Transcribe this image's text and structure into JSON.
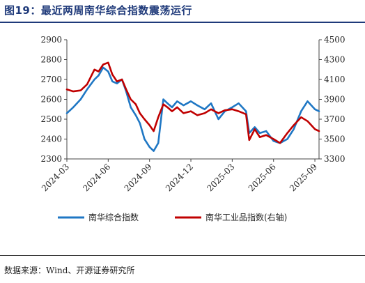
{
  "title": "图19：最近两周南华综合指数震荡运行",
  "source": "数据来源：Wind、开源证券研究所",
  "colors": {
    "left_series": "#1f77c4",
    "right_series": "#c00000",
    "title": "#1f3a7a"
  },
  "chart_data": {
    "type": "line",
    "title": "图19：最近两周南华综合指数震荡运行",
    "xlabel": "",
    "ylabel": "",
    "x_ticks": [
      "2024-03",
      "2024-06",
      "2024-09",
      "2024-12",
      "2025-03",
      "2025-06",
      "2025-09"
    ],
    "x_range": [
      "2024-03",
      "2025-09"
    ],
    "y_left": {
      "range": [
        2300,
        2900
      ],
      "ticks": [
        2300,
        2400,
        2500,
        2600,
        2700,
        2800,
        2900
      ]
    },
    "y_right": {
      "range": [
        3300,
        4500
      ],
      "ticks": [
        3300,
        3500,
        3700,
        3900,
        4100,
        4300,
        4500
      ]
    },
    "grid": false,
    "legend": "bottom",
    "series": [
      {
        "name": "南华综合指数",
        "axis": "left",
        "color": "#1f77c4",
        "x": [
          "2024-03-01",
          "2024-03-15",
          "2024-04-01",
          "2024-04-15",
          "2024-05-01",
          "2024-05-10",
          "2024-05-20",
          "2024-06-01",
          "2024-06-10",
          "2024-06-20",
          "2024-07-01",
          "2024-07-10",
          "2024-07-20",
          "2024-08-01",
          "2024-08-10",
          "2024-08-20",
          "2024-09-01",
          "2024-09-10",
          "2024-09-20",
          "2024-10-01",
          "2024-10-10",
          "2024-10-20",
          "2024-11-01",
          "2024-11-15",
          "2024-12-01",
          "2024-12-15",
          "2025-01-01",
          "2025-01-15",
          "2025-02-01",
          "2025-02-15",
          "2025-03-01",
          "2025-03-15",
          "2025-04-01",
          "2025-04-08",
          "2025-04-20",
          "2025-05-01",
          "2025-05-15",
          "2025-06-01",
          "2025-06-15",
          "2025-07-01",
          "2025-07-15",
          "2025-08-01",
          "2025-08-15",
          "2025-09-01",
          "2025-09-10"
        ],
        "y": [
          2530,
          2560,
          2600,
          2650,
          2700,
          2720,
          2760,
          2740,
          2690,
          2680,
          2700,
          2640,
          2560,
          2520,
          2480,
          2400,
          2360,
          2340,
          2380,
          2600,
          2580,
          2560,
          2590,
          2570,
          2590,
          2570,
          2550,
          2580,
          2500,
          2540,
          2560,
          2580,
          2540,
          2430,
          2460,
          2430,
          2440,
          2390,
          2380,
          2400,
          2450,
          2540,
          2590,
          2550,
          2540
        ]
      },
      {
        "name": "南华工业品指数(右轴)",
        "axis": "right",
        "color": "#c00000",
        "x": [
          "2024-03-01",
          "2024-03-15",
          "2024-04-01",
          "2024-04-15",
          "2024-05-01",
          "2024-05-10",
          "2024-05-20",
          "2024-06-01",
          "2024-06-10",
          "2024-06-20",
          "2024-07-01",
          "2024-07-10",
          "2024-07-20",
          "2024-08-01",
          "2024-08-10",
          "2024-08-20",
          "2024-09-01",
          "2024-09-10",
          "2024-09-20",
          "2024-10-01",
          "2024-10-10",
          "2024-10-20",
          "2024-11-01",
          "2024-11-15",
          "2024-12-01",
          "2024-12-15",
          "2025-01-01",
          "2025-01-15",
          "2025-02-01",
          "2025-02-15",
          "2025-03-01",
          "2025-03-15",
          "2025-04-01",
          "2025-04-08",
          "2025-04-20",
          "2025-05-01",
          "2025-05-15",
          "2025-06-01",
          "2025-06-15",
          "2025-07-01",
          "2025-07-15",
          "2025-08-01",
          "2025-08-15",
          "2025-09-01",
          "2025-09-10"
        ],
        "y": [
          4000,
          3980,
          3990,
          4050,
          4200,
          4180,
          4250,
          4270,
          4150,
          4080,
          4100,
          4000,
          3900,
          3850,
          3760,
          3700,
          3640,
          3580,
          3720,
          3850,
          3820,
          3780,
          3820,
          3760,
          3780,
          3740,
          3760,
          3800,
          3760,
          3790,
          3800,
          3780,
          3750,
          3490,
          3600,
          3520,
          3540,
          3500,
          3460,
          3560,
          3640,
          3720,
          3680,
          3600,
          3580
        ]
      }
    ]
  }
}
